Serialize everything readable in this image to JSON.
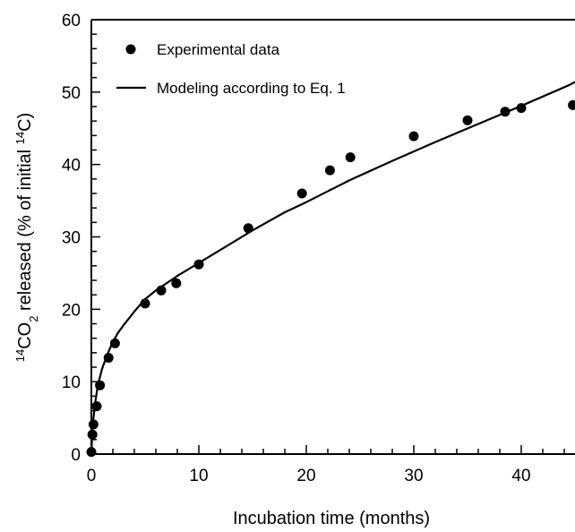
{
  "chart_data": {
    "type": "scatter",
    "xlabel": "Incubation time (months)",
    "ylabel": {
      "pre": "14",
      "main1": "CO",
      "sub": "2",
      "main2": " released (% of initial ",
      "sup2": "14",
      "main3": "C)"
    },
    "xlim": [
      0,
      45
    ],
    "ylim": [
      0,
      60
    ],
    "xticks": [
      0,
      10,
      20,
      30,
      40
    ],
    "yticks": [
      0,
      10,
      20,
      30,
      40,
      50,
      60
    ],
    "xtick_labels": [
      "0",
      "10",
      "20",
      "30",
      "40"
    ],
    "ytick_labels": [
      "0",
      "10",
      "20",
      "30",
      "40",
      "50",
      "60"
    ],
    "legend": {
      "position": "top-left",
      "entries": [
        "Experimental data",
        "Modeling according to Eq. 1"
      ]
    },
    "series": [
      {
        "name": "Experimental data",
        "kind": "scatter",
        "points": [
          [
            0,
            0.3
          ],
          [
            0.1,
            2.7
          ],
          [
            0.2,
            4.1
          ],
          [
            0.5,
            6.6
          ],
          [
            0.8,
            9.5
          ],
          [
            1.6,
            13.3
          ],
          [
            2.2,
            15.3
          ],
          [
            5.0,
            20.8
          ],
          [
            6.5,
            22.6
          ],
          [
            7.9,
            23.6
          ],
          [
            10.0,
            26.2
          ],
          [
            14.6,
            31.2
          ],
          [
            19.6,
            36.0
          ],
          [
            22.2,
            39.2
          ],
          [
            24.1,
            41.0
          ],
          [
            30.0,
            43.9
          ],
          [
            35.0,
            46.1
          ],
          [
            38.5,
            47.3
          ],
          [
            40.0,
            47.8
          ],
          [
            44.8,
            48.2
          ]
        ]
      },
      {
        "name": "Modeling according to Eq. 1",
        "kind": "line",
        "points": [
          [
            0,
            0
          ],
          [
            0.1,
            3.5
          ],
          [
            0.3,
            6.5
          ],
          [
            0.6,
            9.5
          ],
          [
            1.0,
            11.8
          ],
          [
            1.5,
            13.8
          ],
          [
            2.0,
            15.5
          ],
          [
            2.5,
            16.8
          ],
          [
            3.0,
            17.8
          ],
          [
            4.0,
            19.7
          ],
          [
            5.0,
            21.4
          ],
          [
            6.0,
            22.6
          ],
          [
            8.0,
            24.6
          ],
          [
            10.0,
            26.4
          ],
          [
            12.0,
            28.2
          ],
          [
            15.0,
            30.9
          ],
          [
            18.0,
            33.4
          ],
          [
            20.0,
            34.8
          ],
          [
            24.0,
            37.8
          ],
          [
            28.0,
            40.5
          ],
          [
            32.0,
            43.1
          ],
          [
            36.0,
            45.6
          ],
          [
            40.0,
            48.1
          ],
          [
            44.5,
            51.0
          ],
          [
            45.0,
            51.4
          ]
        ]
      }
    ]
  }
}
